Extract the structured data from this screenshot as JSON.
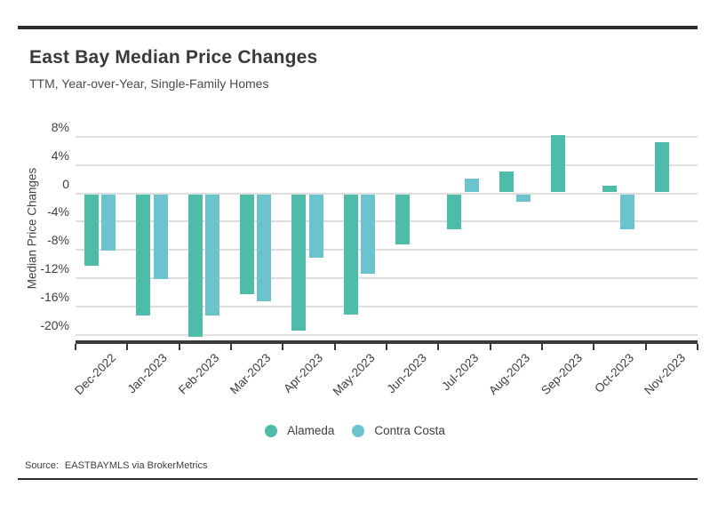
{
  "header": {
    "title": "East Bay Median Price Changes",
    "subtitle": "TTM, Year-over-Year, Single-Family Homes"
  },
  "source": {
    "label": "Source:",
    "value": "EASTBAYMLS via BrokerMetrics"
  },
  "chart_data": {
    "type": "bar",
    "title": "East Bay Median Price Changes",
    "subtitle": "TTM, Year-over-Year, Single-Family Homes",
    "categories": [
      "Dec-2022",
      "Jan-2023",
      "Feb-2023",
      "Mar-2023",
      "Apr-2023",
      "May-2023",
      "Jun-2023",
      "Jul-2023",
      "Aug-2023",
      "Sep-2023",
      "Oct-2023",
      "Nov-2023"
    ],
    "series": [
      {
        "name": "Alameda",
        "color": "#4dbca8",
        "values": [
          -10.1,
          -17.2,
          -20.2,
          -14.1,
          -19.3,
          -17.1,
          -7.1,
          -5.0,
          3.0,
          8.1,
          1.0,
          7.1
        ]
      },
      {
        "name": "Contra Costa",
        "color": "#6bc3ce",
        "values": [
          -8.0,
          -12.0,
          -17.2,
          -15.1,
          -9.0,
          -11.2,
          null,
          2.0,
          -1.1,
          null,
          -5.0,
          null
        ]
      }
    ],
    "xlabel": "",
    "ylabel": "Median Price Changes",
    "unit": "%",
    "yticks": [
      8,
      4,
      0,
      -4,
      -8,
      -12,
      -16,
      -20
    ],
    "ytick_labels": [
      "8%",
      "4%",
      "0",
      "-4%",
      "-8%",
      "-12%",
      "-16%",
      "-20%"
    ],
    "ylim": [
      -21.1,
      10.4
    ],
    "grid": true,
    "legend_position": "bottom"
  }
}
